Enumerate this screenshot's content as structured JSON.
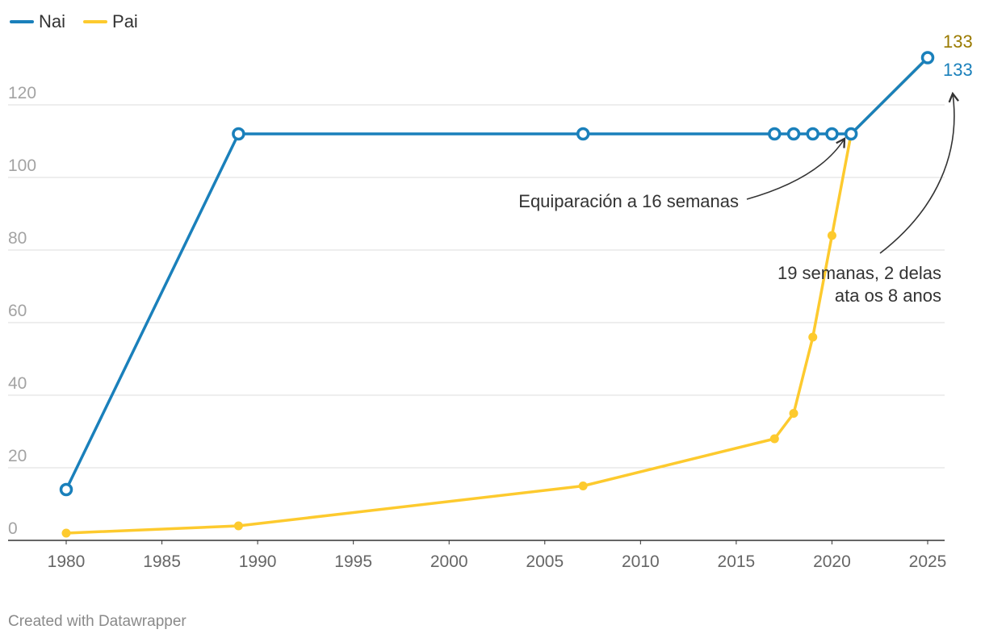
{
  "chart_data": {
    "type": "line",
    "title": "",
    "xlabel": "",
    "ylabel": "",
    "xlim": [
      1977,
      2026
    ],
    "ylim": [
      0,
      133
    ],
    "x_ticks": [
      1980,
      1985,
      1990,
      1995,
      2000,
      2005,
      2010,
      2015,
      2020,
      2025
    ],
    "y_ticks": [
      0,
      20,
      40,
      60,
      80,
      100,
      120
    ],
    "grid": true,
    "legend": "top-left",
    "series": [
      {
        "name": "Nai",
        "color": "#1a80bb",
        "marker": "open-circle",
        "points": [
          [
            1980,
            14
          ],
          [
            1989,
            112
          ],
          [
            2007,
            112
          ],
          [
            2017,
            112
          ],
          [
            2018,
            112
          ],
          [
            2019,
            112
          ],
          [
            2020,
            112
          ],
          [
            2021,
            112
          ],
          [
            2025,
            133
          ]
        ],
        "end_label": "133",
        "end_label_color": "#1a80bb"
      },
      {
        "name": "Pai",
        "color": "#fdca2e",
        "marker": "dot",
        "points": [
          [
            1980,
            2
          ],
          [
            1989,
            4
          ],
          [
            2007,
            15
          ],
          [
            2017,
            28
          ],
          [
            2018,
            35
          ],
          [
            2019,
            56
          ],
          [
            2020,
            84
          ],
          [
            2021,
            112
          ],
          [
            2025,
            133
          ]
        ],
        "end_label": "133",
        "end_label_color": "#9a7a00"
      }
    ],
    "annotations": [
      {
        "text": "Equiparación a 16 semanas",
        "x": 2021,
        "y": 112
      },
      {
        "text": "19 semanas, 2 delas ata os 8 anos",
        "x": 2025,
        "y": 133
      }
    ]
  },
  "legend": {
    "nai": "Nai",
    "pai": "Pai"
  },
  "credit": "Created with Datawrapper"
}
